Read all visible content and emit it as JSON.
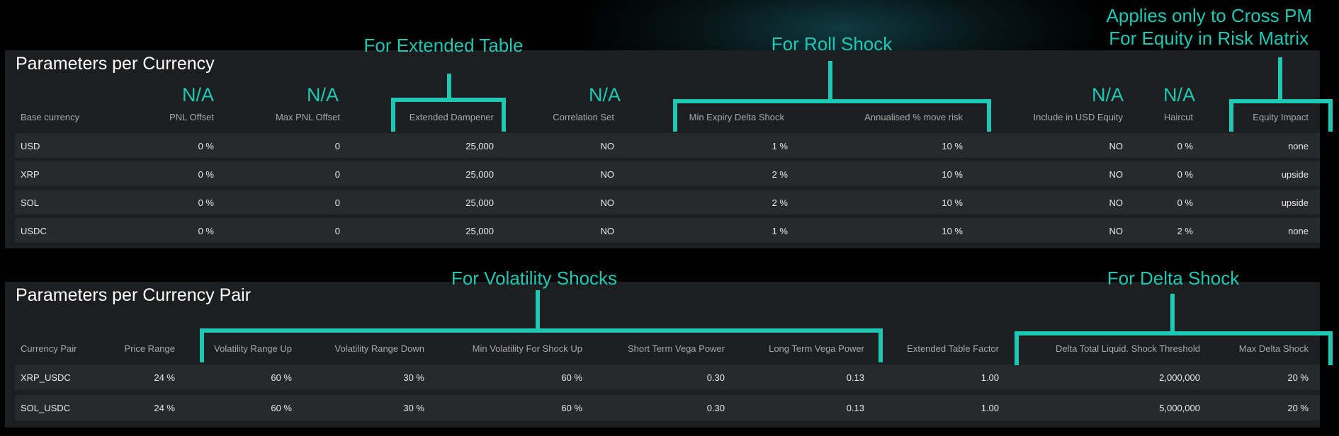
{
  "annotations": {
    "extended_table": "For Extended Table",
    "roll_shock": "For Roll Shock",
    "cross_pm_line1": "Applies only to Cross PM",
    "cross_pm_line2": "For Equity in Risk Matrix",
    "volatility_shocks": "For Volatility Shocks",
    "delta_shock": "For Delta Shock"
  },
  "na_label": "N/A",
  "currency_section": {
    "title": "Parameters per Currency",
    "headers": [
      "Base currency",
      "PNL Offset",
      "Max PNL Offset",
      "Extended Dampener",
      "Correlation Set",
      "Min Expiry Delta Shock",
      "Annualised % move risk",
      "Include in USD Equity",
      "Haircut",
      "Equity Impact"
    ],
    "rows": [
      [
        "USD",
        "0 %",
        "0",
        "25,000",
        "NO",
        "1 %",
        "10 %",
        "NO",
        "0 %",
        "none"
      ],
      [
        "XRP",
        "0 %",
        "0",
        "25,000",
        "NO",
        "2 %",
        "10 %",
        "NO",
        "0 %",
        "upside"
      ],
      [
        "SOL",
        "0 %",
        "0",
        "25,000",
        "NO",
        "2 %",
        "10 %",
        "NO",
        "0 %",
        "upside"
      ],
      [
        "USDC",
        "0 %",
        "0",
        "25,000",
        "NO",
        "1 %",
        "10 %",
        "NO",
        "2 %",
        "none"
      ]
    ]
  },
  "pair_section": {
    "title": "Parameters per Currency Pair",
    "headers": [
      "Currency Pair",
      "Price Range",
      "Volatility Range Up",
      "Volatility Range Down",
      "Min Volatility For Shock Up",
      "Short Term Vega Power",
      "Long Term Vega Power",
      "Extended Table Factor",
      "Delta Total Liquid. Shock Threshold",
      "Max Delta Shock"
    ],
    "rows": [
      [
        "XRP_USDC",
        "24 %",
        "60 %",
        "30 %",
        "60 %",
        "0.30",
        "0.13",
        "1.00",
        "2,000,000",
        "20 %"
      ],
      [
        "SOL_USDC",
        "24 %",
        "60 %",
        "30 %",
        "60 %",
        "0.30",
        "0.13",
        "1.00",
        "5,000,000",
        "20 %"
      ]
    ]
  },
  "colors": {
    "accent": "#1ec8b4",
    "panel": "#1d1e20",
    "row": "#28292c",
    "header_text": "#a8a8a8",
    "cell_text": "#e8e8e8"
  }
}
